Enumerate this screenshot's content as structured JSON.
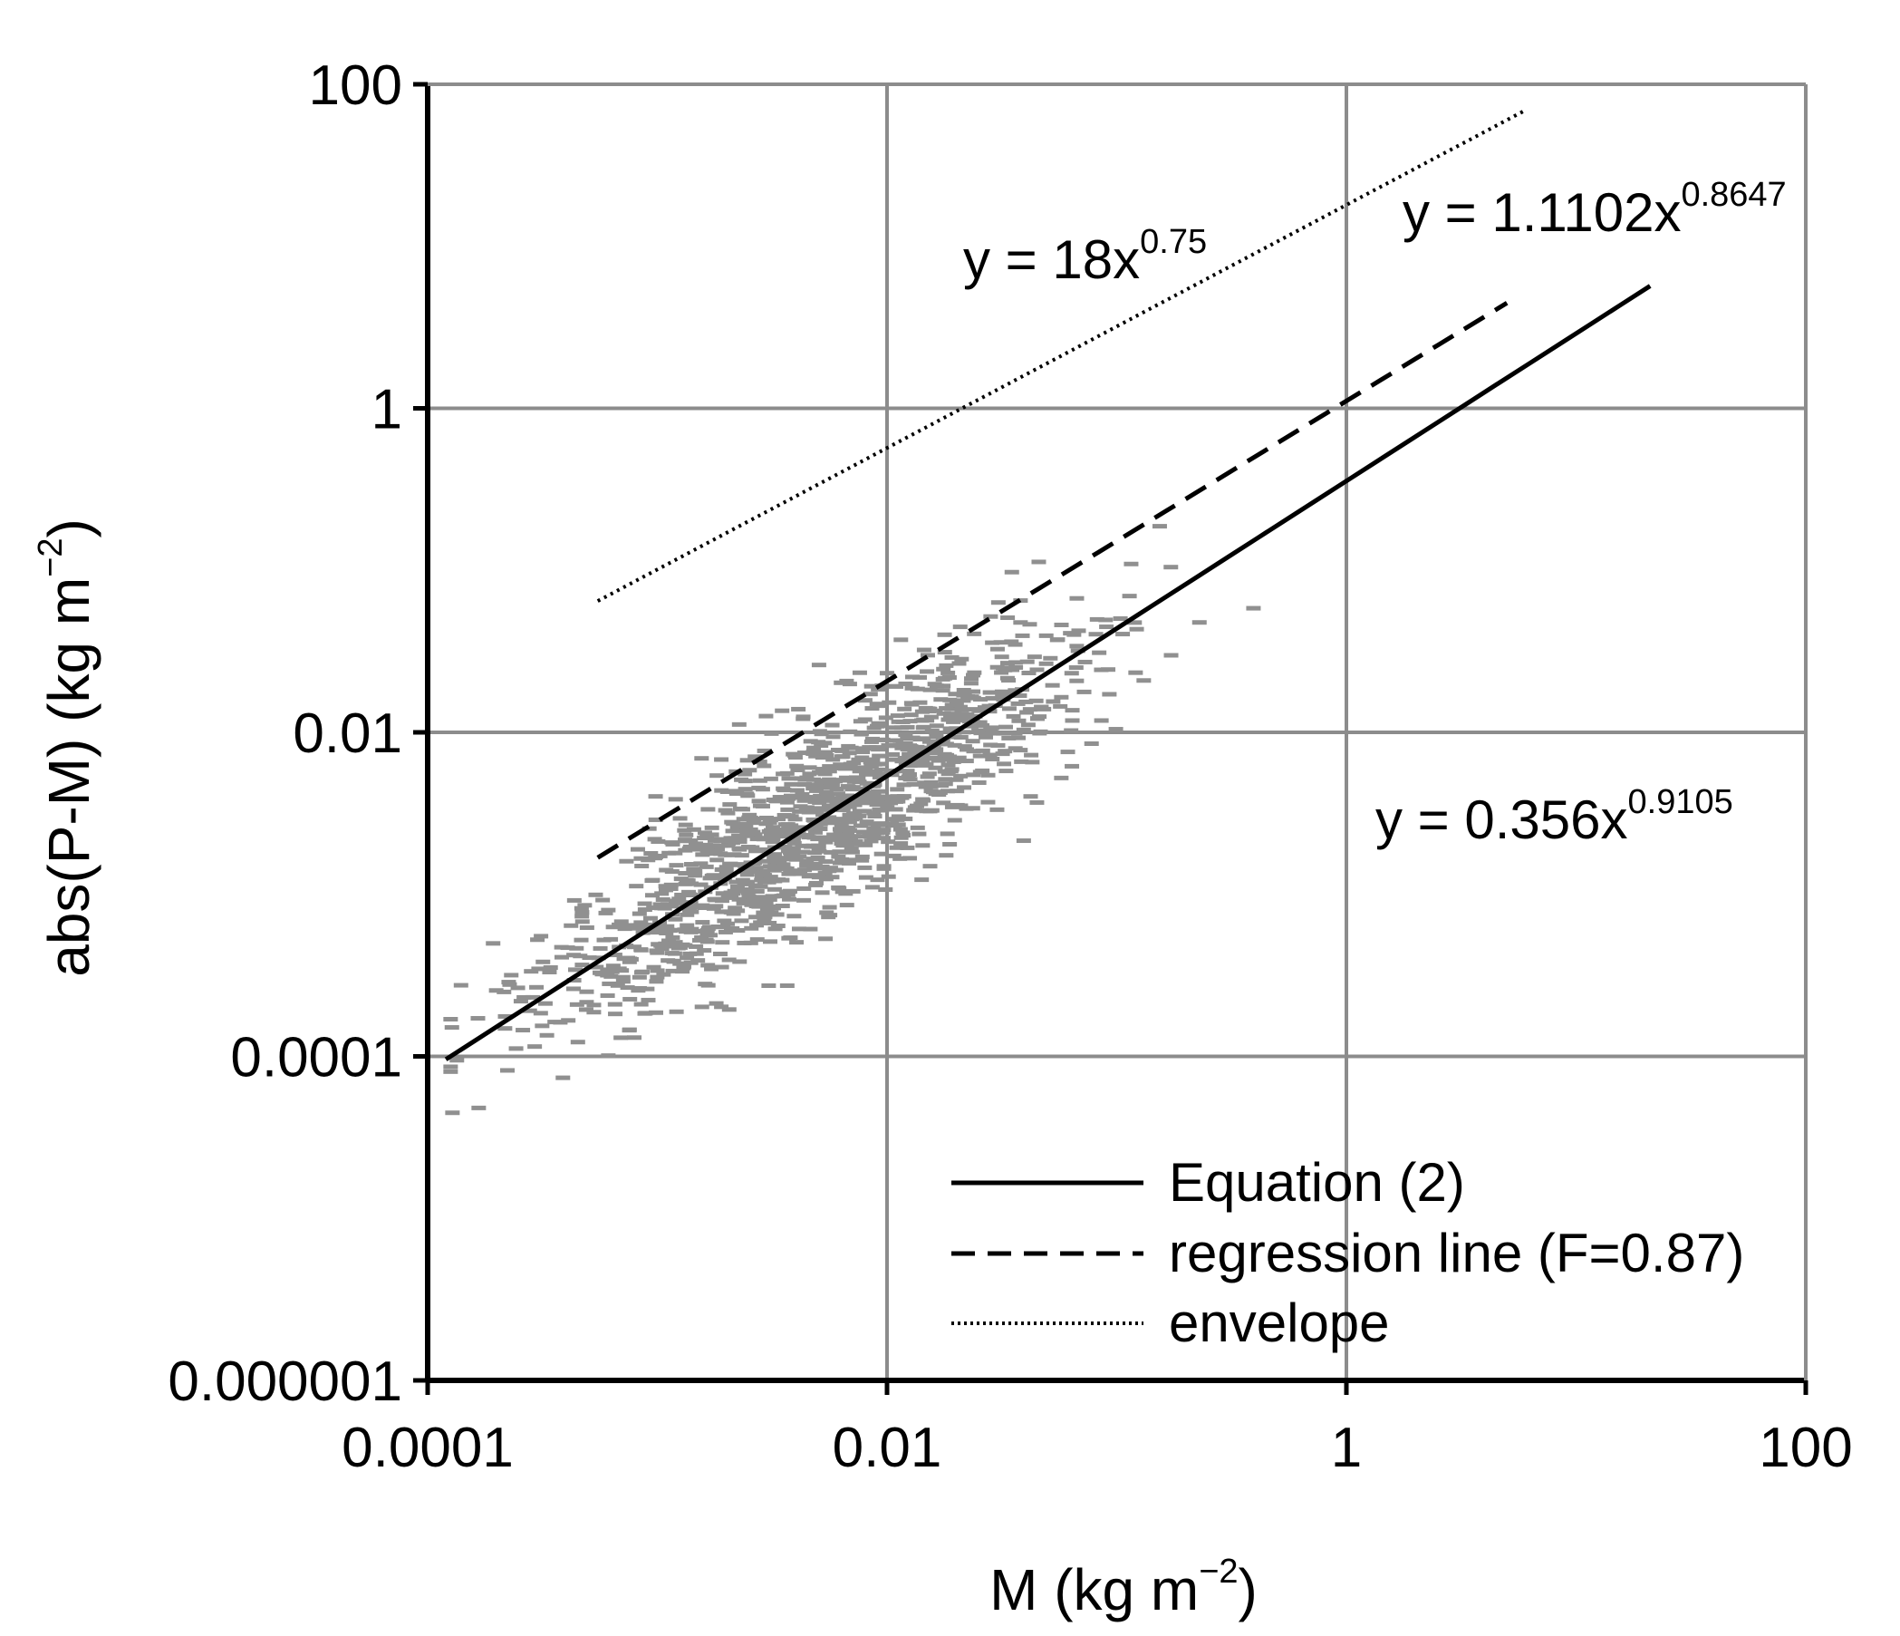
{
  "chart_data": {
    "type": "scatter",
    "x_scale": "log",
    "y_scale": "log",
    "xlim": [
      0.0001,
      100
    ],
    "ylim": [
      1e-06,
      100
    ],
    "grid": true,
    "xlabel": "M (kg m",
    "xlabel_sup": "−2",
    "xlabel_end": ")",
    "ylabel": "abs(P-M) (kg m",
    "ylabel_sup": "−2",
    "ylabel_end": ")",
    "x_ticks": [
      {
        "value": 0.0001,
        "label": "0.0001"
      },
      {
        "value": 0.01,
        "label": "0.01"
      },
      {
        "value": 1,
        "label": "1"
      },
      {
        "value": 100,
        "label": "100"
      }
    ],
    "y_ticks": [
      {
        "value": 1e-06,
        "label": "0.000001"
      },
      {
        "value": 0.0001,
        "label": "0.0001"
      },
      {
        "value": 0.01,
        "label": "0.01"
      },
      {
        "value": 1,
        "label": "1"
      },
      {
        "value": 100,
        "label": "100"
      }
    ],
    "series": [
      {
        "name": "Equation (2)",
        "style": "solid",
        "coef": 0.356,
        "exp": 0.9105,
        "x_range": [
          0.00012,
          21
        ]
      },
      {
        "name": "regression line (F=0.87)",
        "style": "dashed",
        "coef": 1.1102,
        "exp": 0.8647,
        "x_range": [
          0.00055,
          5
        ]
      },
      {
        "name": "envelope",
        "style": "dotted",
        "coef": 18,
        "exp": 0.75,
        "x_range": [
          0.00055,
          6
        ]
      }
    ],
    "equations": [
      {
        "base": "y = 18x",
        "sup": "0.75"
      },
      {
        "base": "y = 1.1102x",
        "sup": "0.8647"
      },
      {
        "base": "y = 0.356x",
        "sup": "0.9105"
      }
    ],
    "legend": {
      "position": "bottom-right",
      "entries": [
        "Equation (2)",
        "regression line (F=0.87)",
        "envelope"
      ]
    },
    "scatter": {
      "color": "#909090",
      "count": 1400,
      "note_model": "points scattered around y = 0.356x^0.9105, x from 0.00012 to 21"
    },
    "colors": {
      "grid": "#8c8c8c",
      "axis": "#000000",
      "points": "#909090",
      "lines": "#000000"
    }
  }
}
